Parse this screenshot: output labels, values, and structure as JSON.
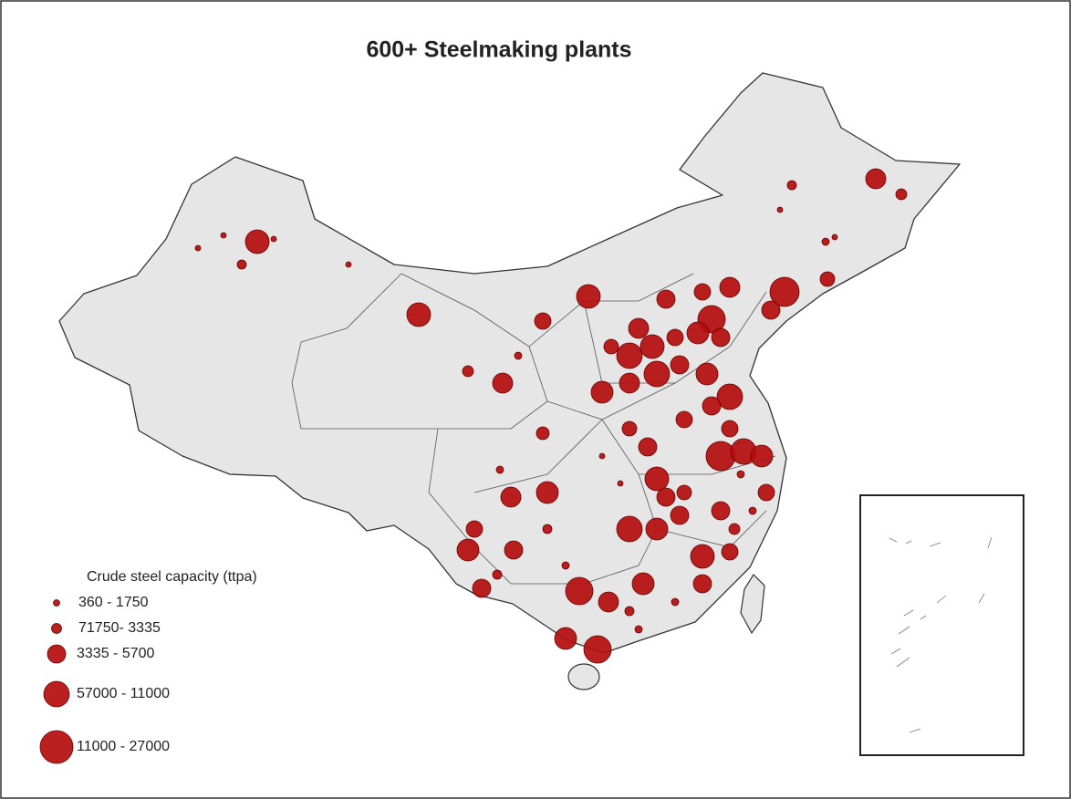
{
  "title": "600+ Steelmaking plants",
  "legend": {
    "title": "Crude steel capacity (ttpa)",
    "items": [
      "360 - 1750",
      "71750- 3335",
      "3335 - 5700",
      "57000 - 11000",
      "11000 - 27000"
    ]
  }
}
